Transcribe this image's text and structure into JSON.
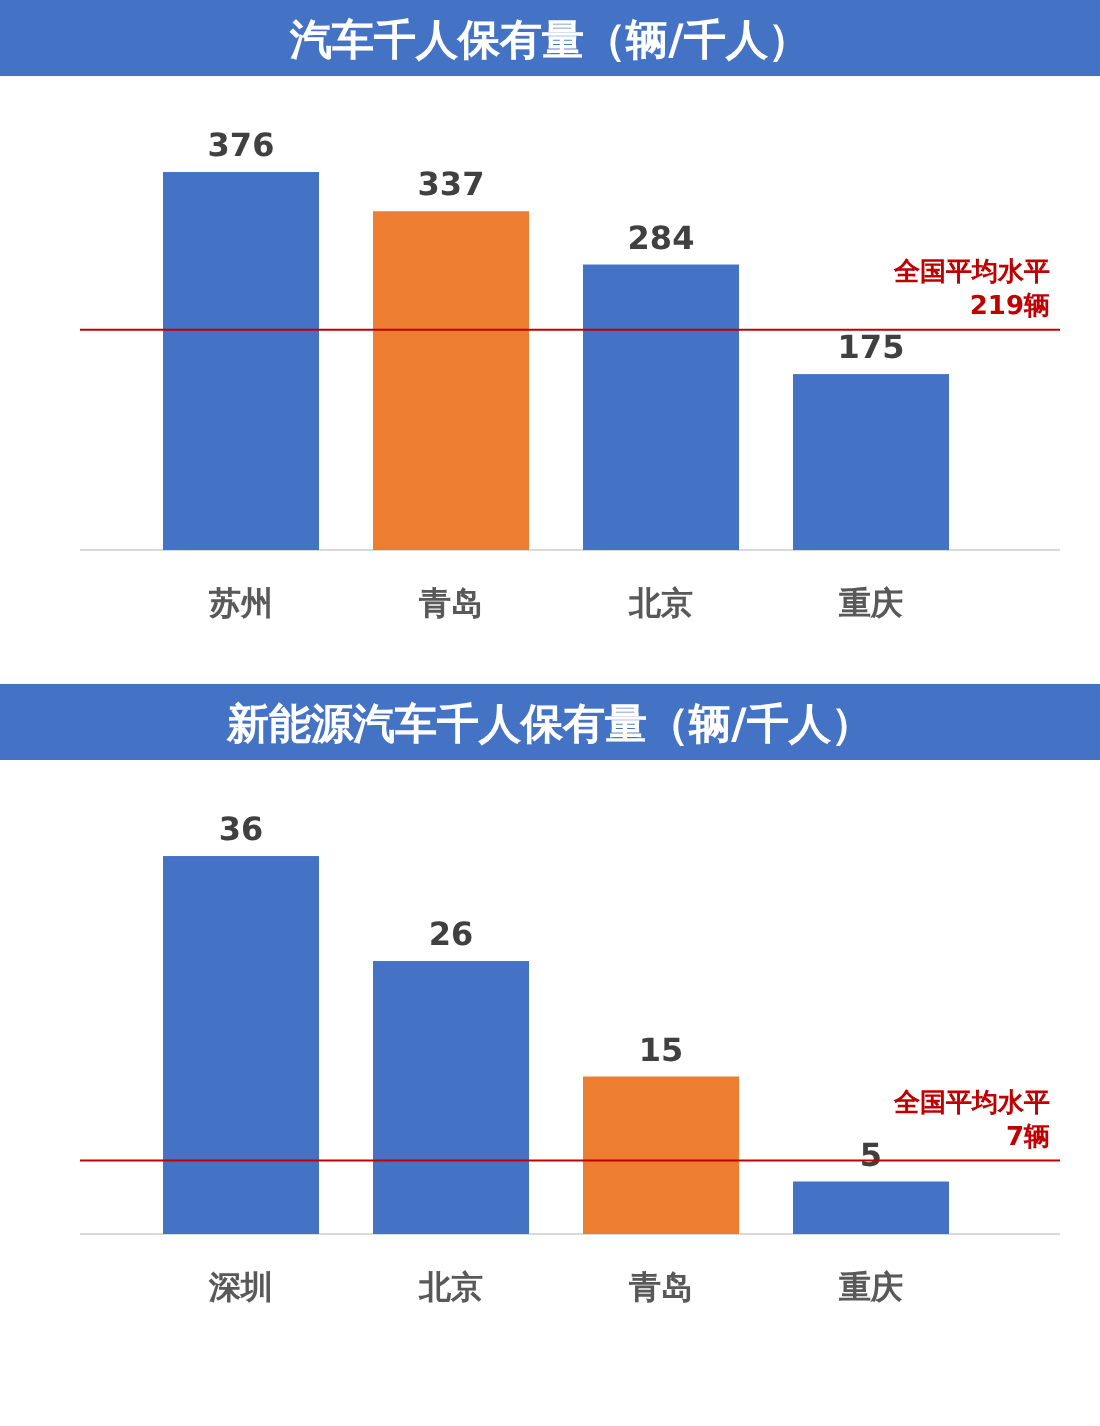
{
  "chart_data": [
    {
      "type": "bar",
      "title": "汽车千人保有量（辆/千人）",
      "categories": [
        "苏州",
        "青岛",
        "北京",
        "重庆"
      ],
      "values": [
        376,
        337,
        284,
        175
      ],
      "colors": [
        "#4472c4",
        "#ed7d31",
        "#4472c4",
        "#4472c4"
      ],
      "data_labels": true,
      "ref_lines": [
        {
          "axis": "y",
          "value": 219,
          "label": "全国平均水平 219辆",
          "color": "#c00000"
        }
      ]
    },
    {
      "type": "bar",
      "title": "新能源汽车千人保有量（辆/千人）",
      "categories": [
        "深圳",
        "北京",
        "青岛",
        "重庆"
      ],
      "values": [
        36,
        26,
        15,
        5
      ],
      "colors": [
        "#4472c4",
        "#4472c4",
        "#ed7d31",
        "#4472c4"
      ],
      "data_labels": true,
      "ref_lines": [
        {
          "axis": "y",
          "value": 7,
          "label": "全国平均水平 7辆",
          "color": "#c00000"
        }
      ]
    }
  ]
}
